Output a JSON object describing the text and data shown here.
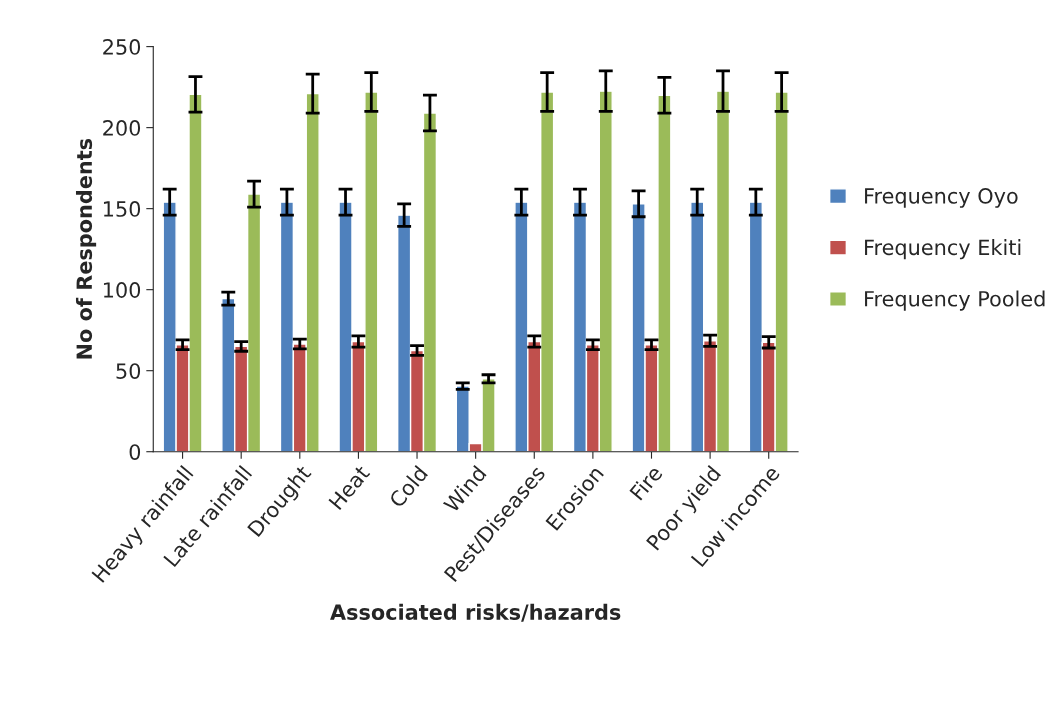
{
  "chart_data": {
    "type": "bar",
    "xlabel": "Associated risks/hazards",
    "ylabel": "No of Respondents",
    "categories": [
      "Heavy rainfall",
      "Late rainfall",
      "Drought",
      "Heat",
      "Cold",
      "Wind",
      "Pest/Diseases",
      "Erosion",
      "Fire",
      "Poor yield",
      "Low income"
    ],
    "series": [
      {
        "name": "Frequency Oyo",
        "color": "#4f81bd",
        "values": [
          154,
          94.5,
          154,
          154,
          146,
          40.5,
          154,
          154,
          153,
          154,
          154
        ],
        "errors": [
          8,
          4,
          8,
          8,
          7,
          2,
          8,
          8,
          8,
          8,
          8
        ]
      },
      {
        "name": "Frequency Ekiti",
        "color": "#c0504d",
        "values": [
          66,
          65,
          66.5,
          68,
          62.5,
          5,
          68,
          66,
          66,
          68.5,
          67.5
        ],
        "errors": [
          3,
          3,
          3,
          3.5,
          3,
          null,
          3.5,
          3,
          3,
          3.5,
          3.5
        ]
      },
      {
        "name": "Frequency Pooled",
        "color": "#9bbb59",
        "values": [
          220.5,
          159,
          221,
          222,
          209,
          45,
          222,
          222.5,
          220,
          222.5,
          222
        ],
        "errors": [
          11,
          8,
          12,
          12,
          11,
          2.5,
          12,
          12.5,
          11,
          12.5,
          12
        ]
      }
    ],
    "ylim": [
      0,
      250
    ],
    "yticks": [
      0,
      50,
      100,
      150,
      200,
      250
    ],
    "grid": false,
    "legend": "right"
  }
}
